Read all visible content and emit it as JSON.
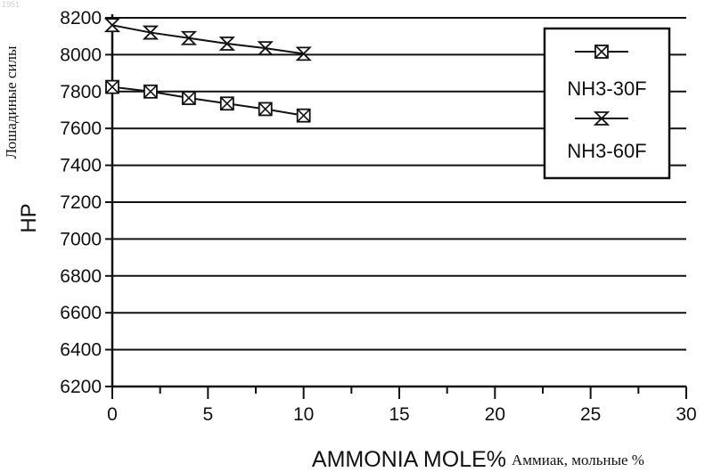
{
  "corner_mark": "1951",
  "chart_data": {
    "type": "line",
    "xlabel": "AMMONIA MOLE%",
    "xlabel_secondary": "Аммиак, мольные %",
    "ylabel": "HP",
    "ylabel_secondary": "Лошадиные силы",
    "xlim": [
      0,
      30
    ],
    "ylim": [
      6200,
      8200
    ],
    "xticks": [
      0,
      5,
      10,
      15,
      20,
      25,
      30
    ],
    "yticks": [
      6200,
      6400,
      6600,
      6800,
      7000,
      7200,
      7400,
      7600,
      7800,
      8000,
      8200
    ],
    "grid": "horizontal",
    "legend_position": "top-right",
    "series": [
      {
        "name": "NH3-30F",
        "marker": "boxed-x",
        "x": [
          0,
          2,
          4,
          6,
          8,
          10
        ],
        "y": [
          7825,
          7800,
          7765,
          7735,
          7705,
          7670
        ]
      },
      {
        "name": "NH3-60F",
        "marker": "hourglass",
        "x": [
          0,
          2,
          4,
          6,
          8,
          10
        ],
        "y": [
          8160,
          8120,
          8090,
          8060,
          8035,
          8005
        ]
      }
    ]
  }
}
